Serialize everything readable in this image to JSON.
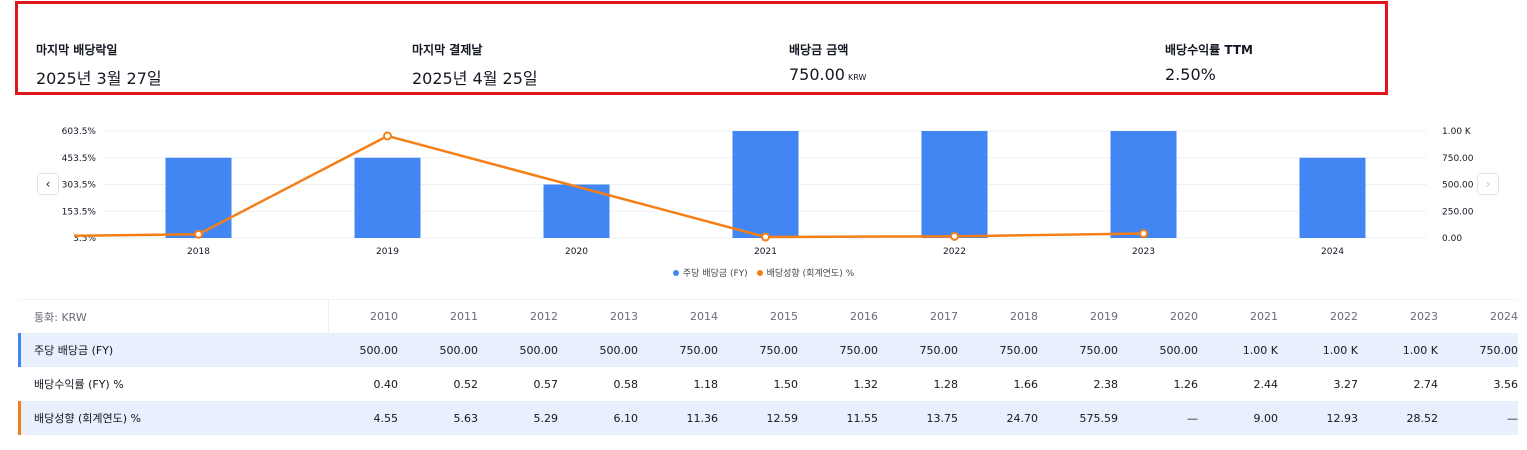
{
  "summary": [
    {
      "label": "마지막 배당락일",
      "value": "2025년 3월 27일",
      "unit": ""
    },
    {
      "label": "마지막 결제날",
      "value": "2025년 4월 25일",
      "unit": ""
    },
    {
      "label": "배당금 금액",
      "value": "750.00",
      "unit": "KRW"
    },
    {
      "label": "배당수익률 TTM",
      "value": "2.50%",
      "unit": ""
    }
  ],
  "colors": {
    "highlight_border": "#e0161e",
    "dps_series": "#4286f4",
    "payout_series": "#f57f17",
    "row_highlight": "#e8f0fd"
  },
  "nav": {
    "prev_icon": "‹",
    "next_icon": "›"
  },
  "chart_data": {
    "type": "bar",
    "categories": [
      "2018",
      "2019",
      "2020",
      "2021",
      "2022",
      "2023",
      "2024"
    ],
    "series": [
      {
        "name": "주당 배당금 (FY)",
        "type": "bar",
        "axis": "right",
        "values": [
          750,
          750,
          500,
          1000,
          1000,
          1000,
          750
        ]
      },
      {
        "name": "배당성향 (회계연도) %",
        "type": "line",
        "axis": "left",
        "values": [
          24.7,
          575.59,
          null,
          9.0,
          12.93,
          28.52,
          null
        ]
      }
    ],
    "left_axis": {
      "ticks": [
        "603.5%",
        "453.5%",
        "303.5%",
        "153.5%",
        "3.5%"
      ],
      "range": [
        3.5,
        603.5
      ]
    },
    "right_axis": {
      "ticks": [
        "1.00 K",
        "750.00",
        "500.00",
        "250.00",
        "0.00"
      ],
      "range": [
        0,
        1000
      ]
    },
    "grid": true,
    "legend_position": "bottom-center"
  },
  "table": {
    "currency_label": "통화: KRW",
    "years": [
      "2010",
      "2011",
      "2012",
      "2013",
      "2014",
      "2015",
      "2016",
      "2017",
      "2018",
      "2019",
      "2020",
      "2021",
      "2022",
      "2023",
      "2024"
    ],
    "rows": [
      {
        "label": "주당 배당금 (FY)",
        "values": [
          "500.00",
          "500.00",
          "500.00",
          "500.00",
          "750.00",
          "750.00",
          "750.00",
          "750.00",
          "750.00",
          "750.00",
          "500.00",
          "1.00 K",
          "1.00 K",
          "1.00 K",
          "750.00"
        ]
      },
      {
        "label": "배당수익률 (FY) %",
        "values": [
          "0.40",
          "0.52",
          "0.57",
          "0.58",
          "1.18",
          "1.50",
          "1.32",
          "1.28",
          "1.66",
          "2.38",
          "1.26",
          "2.44",
          "3.27",
          "2.74",
          "3.56"
        ]
      },
      {
        "label": "배당성향 (회계연도) %",
        "values": [
          "4.55",
          "5.63",
          "5.29",
          "6.10",
          "11.36",
          "12.59",
          "11.55",
          "13.75",
          "24.70",
          "575.59",
          "—",
          "9.00",
          "12.93",
          "28.52",
          "—"
        ]
      }
    ]
  }
}
